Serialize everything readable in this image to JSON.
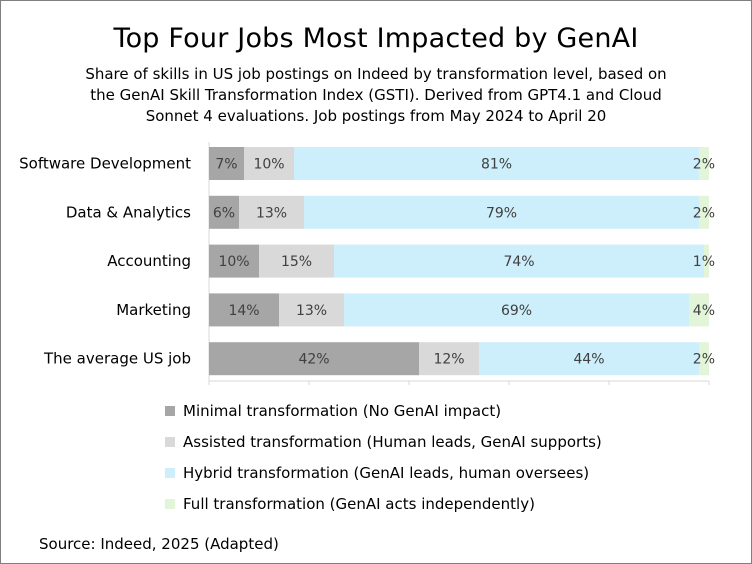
{
  "chart_data": {
    "type": "bar",
    "orientation": "horizontal",
    "stacked": true,
    "title": "Top Four Jobs Most Impacted by GenAI",
    "subtitle": "Share of skills in US job postings on Indeed by transformation level, based on the GenAI Skill Transformation Index (GSTI).  Derived from GPT4.1 and Cloud Sonnet 4 evaluations.  Job postings from May 2024 to April 20",
    "categories": [
      "Software Development",
      "Data & Analytics",
      "Accounting",
      "Marketing",
      "The average US job"
    ],
    "series": [
      {
        "name": "Minimal transformation (No GenAI impact)",
        "color": "#a6a6a6",
        "values": [
          7,
          6,
          10,
          14,
          42
        ]
      },
      {
        "name": "Assisted transformation (Human leads, GenAI supports)",
        "color": "#d9d9d9",
        "values": [
          10,
          13,
          15,
          13,
          12
        ]
      },
      {
        "name": "Hybrid transformation (GenAI leads, human oversees)",
        "color": "#cdeffb",
        "values": [
          81,
          79,
          74,
          69,
          44
        ]
      },
      {
        "name": "Full transformation (GenAI acts independently)",
        "color": "#e2f5d9",
        "values": [
          2,
          2,
          1,
          4,
          2
        ]
      }
    ],
    "value_suffix": "%",
    "xlim": [
      0,
      100
    ],
    "legend_position": "bottom",
    "source": "Source: Indeed, 2025 (Adapted)"
  }
}
